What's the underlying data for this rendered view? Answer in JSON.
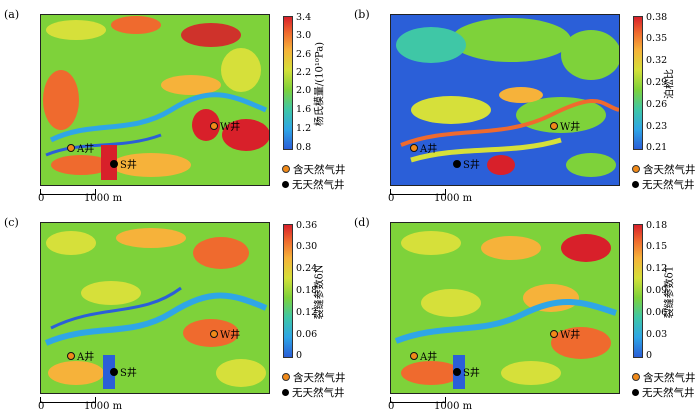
{
  "scale": {
    "left": "0",
    "right": "1000 m"
  },
  "legend": {
    "gas": "含天然气井",
    "nogas": "无天然气井"
  },
  "wells": {
    "A": "A井",
    "S": "S井",
    "W": "W井"
  },
  "colors": {
    "blue": "#2b5fd8",
    "green": "#7ed23a",
    "yellow": "#d6e03a",
    "red": "#d8202a",
    "gas_well": "#f08a1a"
  },
  "panels": [
    {
      "label": "(a)",
      "colorbar_title": "杨氏模量/(10¹⁰Pa)",
      "ticks": [
        "3.4",
        "3.0",
        "2.6",
        "2.2",
        "2.0",
        "1.6",
        "1.2",
        "0.8"
      ],
      "dominant": "green"
    },
    {
      "label": "(b)",
      "colorbar_title": "泊松比",
      "ticks": [
        "0.38",
        "0.35",
        "0.32",
        "0.29",
        "0.26",
        "0.23",
        "0.21"
      ],
      "dominant": "blue"
    },
    {
      "label": "(c)",
      "colorbar_title": "裂缝参数δN",
      "ticks": [
        "0.36",
        "0.30",
        "0.24",
        "0.18",
        "0.12",
        "0.06",
        "0"
      ],
      "dominant": "green"
    },
    {
      "label": "(d)",
      "colorbar_title": "裂缝参数δT",
      "ticks": [
        "0.18",
        "0.15",
        "0.12",
        "0.09",
        "0.06",
        "0.03",
        "0"
      ],
      "dominant": "green"
    }
  ]
}
